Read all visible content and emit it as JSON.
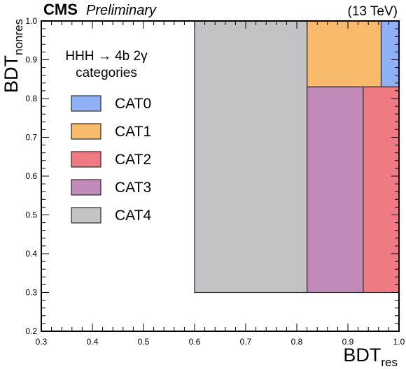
{
  "header": {
    "experiment": "CMS",
    "status": "Preliminary",
    "energy": "(13 TeV)"
  },
  "legend": {
    "header_line1": "HHH → 4b 2γ",
    "header_line2": "categories"
  },
  "chart_data": {
    "type": "heatmap",
    "xlabel": "BDT",
    "xlabel_sub": "res",
    "ylabel": "BDT",
    "ylabel_sub": "nonres",
    "xlim": [
      0.3,
      1.0
    ],
    "ylim": [
      0.2,
      1.0
    ],
    "xticks": [
      "0.3",
      "0.4",
      "0.5",
      "0.6",
      "0.7",
      "0.8",
      "0.9",
      "1.0"
    ],
    "yticks": [
      "0.2",
      "0.3",
      "0.4",
      "0.5",
      "0.6",
      "0.7",
      "0.8",
      "0.9",
      "1.0"
    ],
    "legend_location": "top-left",
    "categories": [
      {
        "name": "CAT0",
        "color": "#8fb0f5",
        "regions": [
          {
            "x": [
              0.965,
              1.0
            ],
            "y": [
              0.83,
              1.0
            ]
          }
        ]
      },
      {
        "name": "CAT1",
        "color": "#f9bb6b",
        "regions": [
          {
            "x": [
              0.82,
              0.965
            ],
            "y": [
              0.83,
              1.0
            ]
          }
        ]
      },
      {
        "name": "CAT2",
        "color": "#ef7a84",
        "regions": [
          {
            "x": [
              0.93,
              1.0
            ],
            "y": [
              0.3,
              0.83
            ]
          }
        ]
      },
      {
        "name": "CAT3",
        "color": "#c28ab8",
        "regions": [
          {
            "x": [
              0.82,
              0.93
            ],
            "y": [
              0.3,
              0.83
            ]
          }
        ]
      },
      {
        "name": "CAT4",
        "color": "#c3c3c5",
        "regions": [
          {
            "x": [
              0.6,
              0.82
            ],
            "y": [
              0.3,
              1.0
            ]
          }
        ]
      }
    ]
  }
}
